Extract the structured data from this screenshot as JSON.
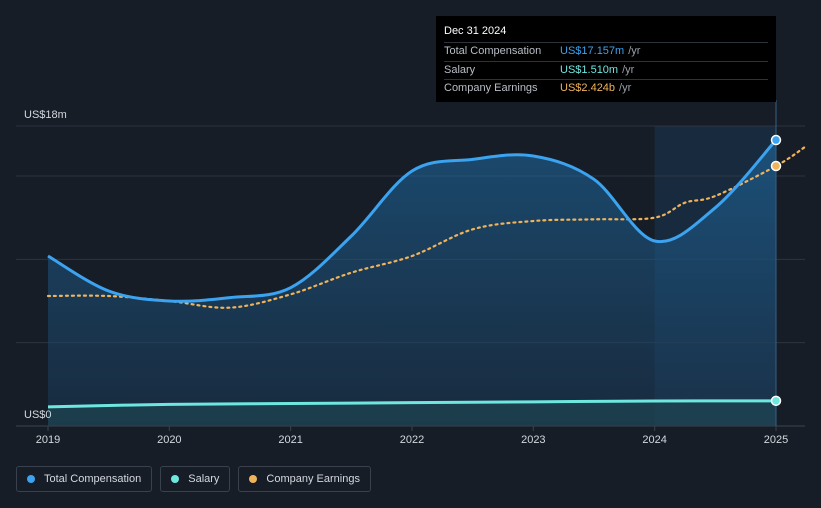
{
  "tooltip": {
    "date": "Dec 31 2024",
    "rows": [
      {
        "label": "Total Compensation",
        "value": "US$17.157m",
        "unit": "/yr",
        "color": "#3ba3f0"
      },
      {
        "label": "Salary",
        "value": "US$1.510m",
        "unit": "/yr",
        "color": "#6ee7df"
      },
      {
        "label": "Company Earnings",
        "value": "US$2.424b",
        "unit": "/yr",
        "color": "#f0b35a"
      }
    ]
  },
  "legend": [
    {
      "label": "Total Compensation",
      "color": "#3ba3f0"
    },
    {
      "label": "Salary",
      "color": "#6ee7df"
    },
    {
      "label": "Company Earnings",
      "color": "#f0b35a"
    }
  ],
  "chart_data": {
    "type": "area",
    "x_ticks": [
      "2019",
      "2020",
      "2021",
      "2022",
      "2023",
      "2024",
      "2025"
    ],
    "y_tick_labels": {
      "top": "US$18m",
      "bottom": "US$0"
    },
    "ylim": [
      0,
      18
    ],
    "x_range": [
      2019.0,
      2025.25
    ],
    "series": [
      {
        "name": "Total Compensation",
        "color": "#3ba3f0",
        "style": "area-line",
        "x": [
          2019.0,
          2019.5,
          2020.0,
          2020.5,
          2021.0,
          2021.5,
          2022.0,
          2022.5,
          2023.0,
          2023.5,
          2024.0,
          2024.5,
          2025.0
        ],
        "y": [
          10.2,
          8.1,
          7.5,
          7.7,
          8.3,
          11.4,
          15.3,
          16.0,
          16.2,
          14.8,
          11.1,
          13.1,
          17.157
        ]
      },
      {
        "name": "Salary",
        "color": "#6ee7df",
        "style": "area-line",
        "x": [
          2019.0,
          2020.0,
          2021.0,
          2022.0,
          2023.0,
          2024.0,
          2025.0
        ],
        "y": [
          1.15,
          1.3,
          1.35,
          1.4,
          1.45,
          1.5,
          1.51
        ]
      },
      {
        "name": "Company Earnings",
        "color": "#f0b35a",
        "style": "dotted",
        "x": [
          2019.0,
          2019.5,
          2020.0,
          2020.5,
          2021.0,
          2021.5,
          2022.0,
          2022.5,
          2023.0,
          2023.5,
          2024.0,
          2024.25,
          2024.5,
          2025.0,
          2025.25
        ],
        "y": [
          7.8,
          7.8,
          7.5,
          7.1,
          7.9,
          9.2,
          10.2,
          11.8,
          12.3,
          12.4,
          12.5,
          13.4,
          13.8,
          15.6,
          16.8
        ]
      }
    ],
    "highlight_from": 2024.0,
    "marker_x": 2025.0,
    "grid": true
  }
}
